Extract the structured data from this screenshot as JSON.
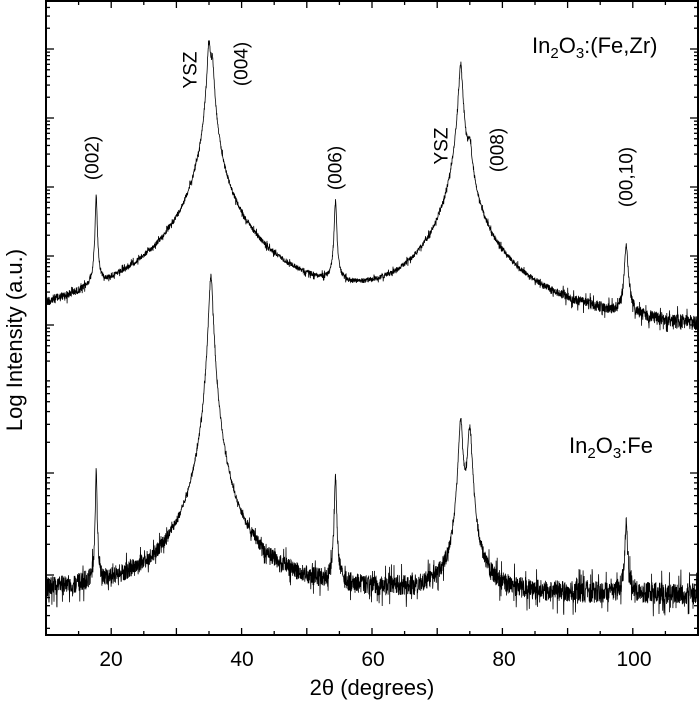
{
  "chart_data": {
    "type": "line",
    "title": "",
    "xlabel": "2θ (degrees)",
    "ylabel": "Log Intensity (a.u.)",
    "xlim": [
      10,
      110
    ],
    "x_ticks": [
      20,
      40,
      60,
      80,
      100
    ],
    "y_scale": "log",
    "y_ticks_labeled": false,
    "grid": false,
    "legend": "none (inline sample labels)",
    "series": [
      {
        "name": "In2O3:(Fe,Zr)",
        "label_main": "In",
        "label_sub1": "2",
        "label_mid": "O",
        "label_sub2": "3",
        "label_tail": ":(Fe,Zr)",
        "baseline_decades": 0,
        "peaks": [
          {
            "two_theta": 17.7,
            "log_height_decades": 2.14,
            "width": 0.18,
            "label": "(002)"
          },
          {
            "two_theta": 35.0,
            "log_height_decades": 4.35,
            "width": 0.35,
            "label": "YSZ"
          },
          {
            "two_theta": 35.5,
            "log_height_decades": 4.09,
            "width": 0.35,
            "label": "(004)"
          },
          {
            "two_theta": 54.4,
            "log_height_decades": 2.07,
            "width": 0.22,
            "label": "(006)"
          },
          {
            "two_theta": 73.6,
            "log_height_decades": 4.06,
            "width": 0.4,
            "label": "YSZ"
          },
          {
            "two_theta": 75.0,
            "log_height_decades": 2.78,
            "width": 0.45,
            "label": "(008)"
          },
          {
            "two_theta": 99.0,
            "log_height_decades": 1.41,
            "width": 0.35,
            "label": "(00,10)"
          }
        ]
      },
      {
        "name": "In2O3:Fe",
        "label_main": "In",
        "label_sub1": "2",
        "label_mid": "O",
        "label_sub2": "3",
        "label_tail": ":Fe",
        "baseline_decades": 0,
        "peaks": [
          {
            "two_theta": 17.7,
            "log_height_decades": 1.23,
            "width": 0.15
          },
          {
            "two_theta": 35.3,
            "log_height_decades": 3.12,
            "width": 0.45
          },
          {
            "two_theta": 54.4,
            "log_height_decades": 1.15,
            "width": 0.22
          },
          {
            "two_theta": 73.6,
            "log_height_decades": 1.71,
            "width": 0.45
          },
          {
            "two_theta": 75.0,
            "log_height_decades": 1.63,
            "width": 0.5
          },
          {
            "two_theta": 99.0,
            "log_height_decades": 0.71,
            "width": 0.3
          }
        ]
      }
    ],
    "annotations": [
      {
        "text": "(002)",
        "x": 17.7
      },
      {
        "text": "YSZ",
        "x": 34.0
      },
      {
        "text": "(004)",
        "x": 38.0
      },
      {
        "text": "(006)",
        "x": 54.4
      },
      {
        "text": "YSZ",
        "x": 72.0
      },
      {
        "text": "(008)",
        "x": 78.0
      },
      {
        "text": "(00,10)",
        "x": 99.0
      }
    ]
  },
  "axis": {
    "xlabel": "2θ (degrees)",
    "ylabel": "Log Intensity (a.u.)",
    "tick_labels": [
      "20",
      "40",
      "60",
      "80",
      "100"
    ]
  },
  "colors": {
    "line": "#000000",
    "background": "#ffffff"
  }
}
